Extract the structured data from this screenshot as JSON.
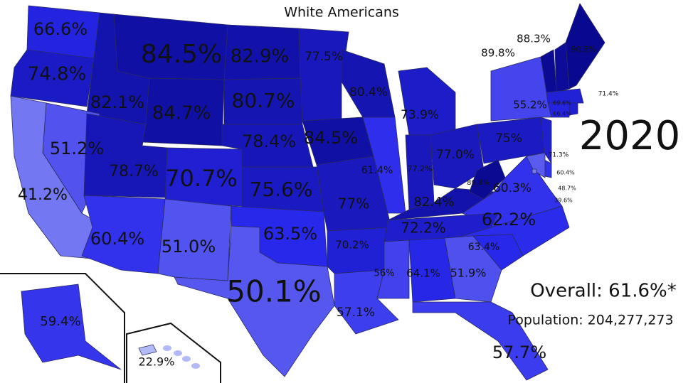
{
  "title": "White Americans",
  "year": "2020",
  "overall": "Overall: 61.6%*",
  "population": "Population: 204,277,273",
  "states": [
    {
      "label": "66.6%"
    },
    {
      "label": "74.8%"
    },
    {
      "label": "82.1%"
    },
    {
      "label": "84.5%"
    },
    {
      "label": "82.9%"
    },
    {
      "label": "77.5%"
    },
    {
      "label": "84.7%"
    },
    {
      "label": "80.7%"
    },
    {
      "label": "80.4%"
    },
    {
      "label": "73.9%"
    },
    {
      "label": "51.2%"
    },
    {
      "label": "41.2%"
    },
    {
      "label": "78.7%"
    },
    {
      "label": "70.7%"
    },
    {
      "label": "78.4%"
    },
    {
      "label": "84.5%"
    },
    {
      "label": "61.4%"
    },
    {
      "label": "77.2%"
    },
    {
      "label": "77.0%"
    },
    {
      "label": "75%"
    },
    {
      "label": "55.2%"
    },
    {
      "label": "75.6%"
    },
    {
      "label": "77%"
    },
    {
      "label": "82.4%"
    },
    {
      "label": "89.8%"
    },
    {
      "label": "60.3%"
    },
    {
      "label": "60.4%"
    },
    {
      "label": "51.0%"
    },
    {
      "label": "63.5%"
    },
    {
      "label": "70.2%"
    },
    {
      "label": "72.2%"
    },
    {
      "label": "62.2%"
    },
    {
      "label": "50.1%"
    },
    {
      "label": "57.1%"
    },
    {
      "label": "56%"
    },
    {
      "label": "64.1%"
    },
    {
      "label": "51.9%"
    },
    {
      "label": "63.4%"
    },
    {
      "label": "57.7%"
    },
    {
      "label": "59.4%"
    },
    {
      "label": "22.9%"
    },
    {
      "label": "90.8%"
    },
    {
      "label": "89.8%"
    },
    {
      "label": "88.3%"
    },
    {
      "label": "69.6%"
    },
    {
      "label": "66.4%"
    },
    {
      "label": "71.4%"
    },
    {
      "label": "71.3%"
    },
    {
      "label": "60.4%"
    },
    {
      "label": "48.7%"
    },
    {
      "label": "39.6%"
    }
  ]
}
